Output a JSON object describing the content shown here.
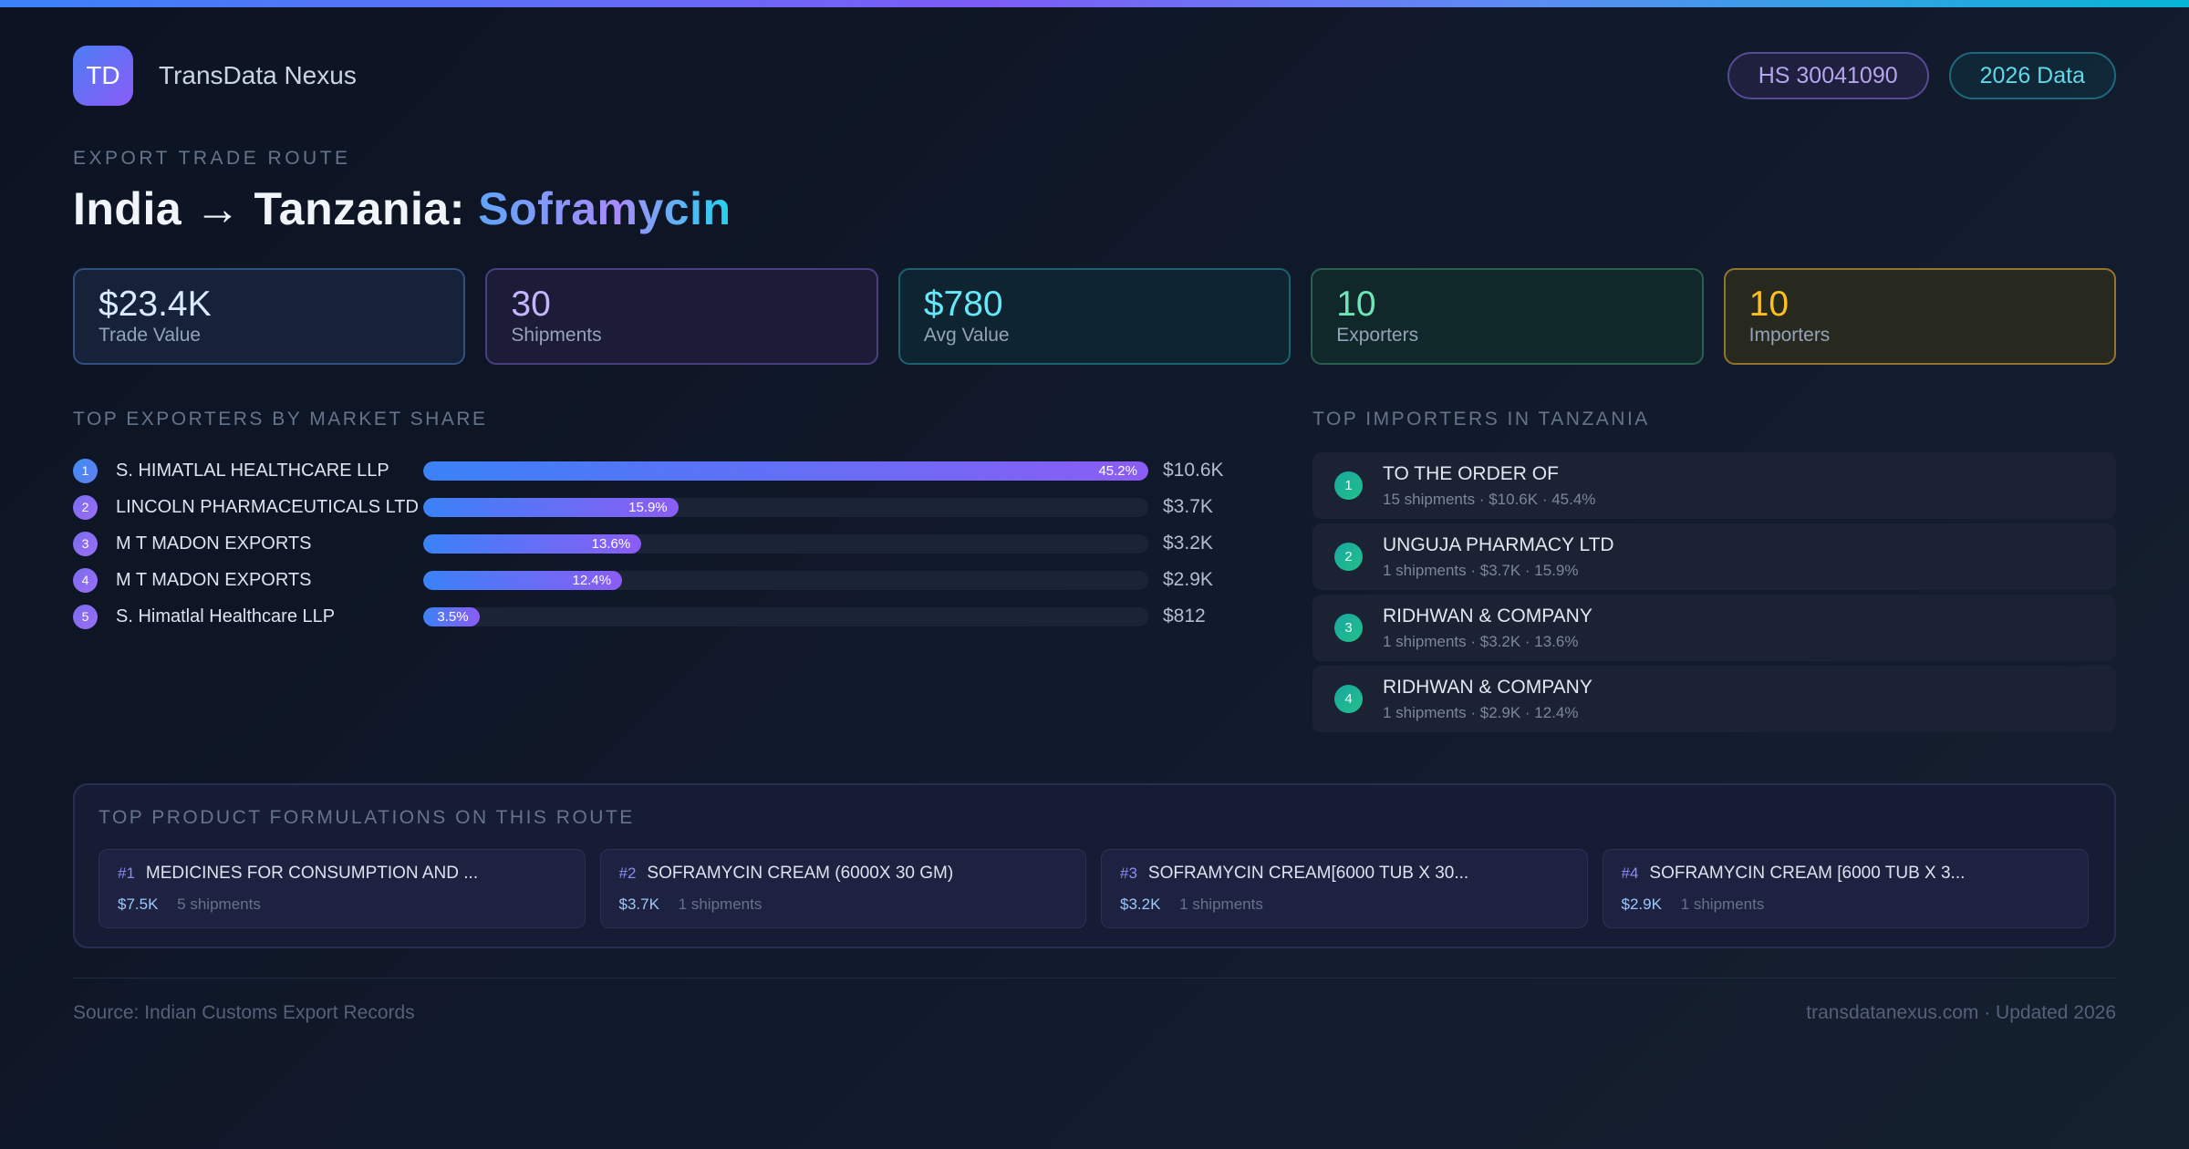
{
  "accent_colors": {
    "topbar_gradient": [
      "#3b82f6",
      "#7c5cf6",
      "#06b6d4"
    ],
    "bar_fill_gradient": [
      "#3b82f6",
      "#8b5cf6"
    ],
    "importer_badge_gradient": [
      "#18a7a0",
      "#23c08a"
    ],
    "stat_blue": "#dbeafe",
    "stat_purple": "#c4b5fd",
    "stat_teal": "#67e8f9",
    "stat_green": "#6ee7b7",
    "stat_amber": "#fbbf24"
  },
  "header": {
    "logo_text": "TD",
    "brand": "TransData Nexus",
    "badge_hs": "HS 30041090",
    "badge_year": "2026 Data"
  },
  "hero": {
    "eyebrow": "EXPORT TRADE ROUTE",
    "title_prefix": "India → Tanzania: ",
    "title_highlight": "Soframycin"
  },
  "stats": [
    {
      "value": "$23.4K",
      "label": "Trade Value"
    },
    {
      "value": "30",
      "label": "Shipments"
    },
    {
      "value": "$780",
      "label": "Avg Value"
    },
    {
      "value": "10",
      "label": "Exporters"
    },
    {
      "value": "10",
      "label": "Importers"
    }
  ],
  "exporters": {
    "title": "TOP EXPORTERS BY MARKET SHARE",
    "max_share_pct": 45.2,
    "rows": [
      {
        "rank": "1",
        "name": "S. HIMATLAL HEALTHCARE LLP",
        "share_pct": 45.2,
        "share_label": "45.2%",
        "value": "$10.6K"
      },
      {
        "rank": "2",
        "name": "LINCOLN PHARMACEUTICALS LTD",
        "share_pct": 15.9,
        "share_label": "15.9%",
        "value": "$3.7K"
      },
      {
        "rank": "3",
        "name": "M T MADON EXPORTS",
        "share_pct": 13.6,
        "share_label": "13.6%",
        "value": "$3.2K"
      },
      {
        "rank": "4",
        "name": "M T MADON EXPORTS",
        "share_pct": 12.4,
        "share_label": "12.4%",
        "value": "$2.9K"
      },
      {
        "rank": "5",
        "name": "S. Himatlal Healthcare LLP",
        "share_pct": 3.5,
        "share_label": "3.5%",
        "value": "$812"
      }
    ]
  },
  "importers": {
    "title": "TOP IMPORTERS IN TANZANIA",
    "rows": [
      {
        "rank": "1",
        "name": "TO THE ORDER OF",
        "meta": "15 shipments · $10.6K · 45.4%"
      },
      {
        "rank": "2",
        "name": "UNGUJA PHARMACY LTD",
        "meta": "1 shipments · $3.7K · 15.9%"
      },
      {
        "rank": "3",
        "name": "RIDHWAN & COMPANY",
        "meta": "1 shipments · $3.2K · 13.6%"
      },
      {
        "rank": "4",
        "name": "RIDHWAN & COMPANY",
        "meta": "1 shipments · $2.9K · 12.4%"
      }
    ]
  },
  "products": {
    "title": "TOP PRODUCT FORMULATIONS ON THIS ROUTE",
    "cards": [
      {
        "rank": "#1",
        "name": "MEDICINES FOR CONSUMPTION AND ...",
        "value": "$7.5K",
        "shipments": "5 shipments"
      },
      {
        "rank": "#2",
        "name": "SOFRAMYCIN CREAM (6000X 30 GM)",
        "value": "$3.7K",
        "shipments": "1 shipments"
      },
      {
        "rank": "#3",
        "name": "SOFRAMYCIN CREAM[6000 TUB X 30...",
        "value": "$3.2K",
        "shipments": "1 shipments"
      },
      {
        "rank": "#4",
        "name": "SOFRAMYCIN CREAM [6000 TUB X 3...",
        "value": "$2.9K",
        "shipments": "1 shipments"
      }
    ]
  },
  "footer": {
    "source": "Source: Indian Customs Export Records",
    "site": "transdatanexus.com · Updated 2026"
  }
}
